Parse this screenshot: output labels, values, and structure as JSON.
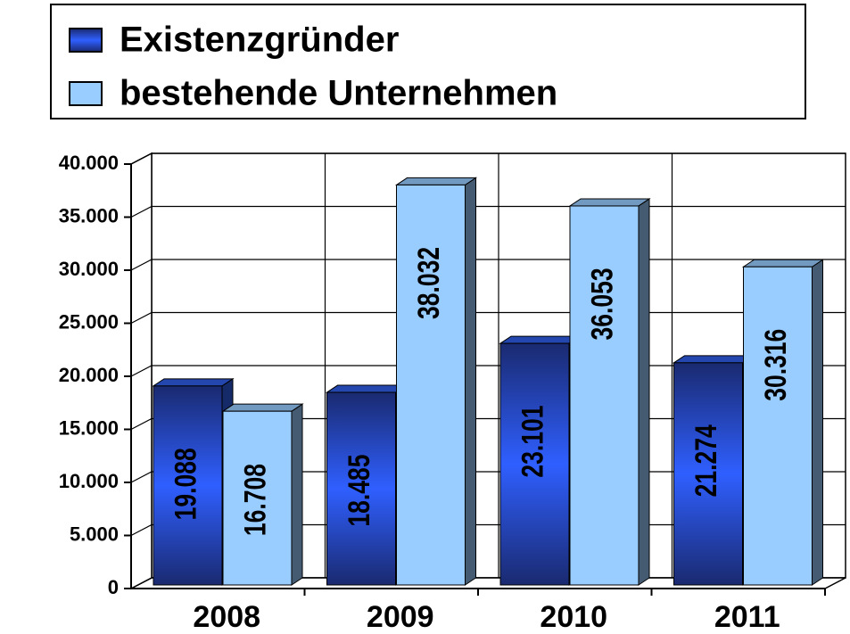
{
  "chart_data": {
    "type": "bar3d",
    "categories": [
      "2008",
      "2009",
      "2010",
      "2011"
    ],
    "series": [
      {
        "name": "Existenzgründer",
        "color": "#2f5fe8",
        "values": [
          19088,
          18485,
          23101,
          21274
        ],
        "value_labels": [
          "19.088",
          "18.485",
          "23.101",
          "21.274"
        ]
      },
      {
        "name": "bestehende Unternehmen",
        "color": "#99ccff",
        "values": [
          16708,
          38032,
          36053,
          30316
        ],
        "value_labels": [
          "16.708",
          "38.032",
          "36.053",
          "30.316"
        ]
      }
    ],
    "ylim": [
      0,
      40000
    ],
    "yticks": [
      0,
      {
        "value": 5000,
        "label": "5.000"
      },
      {
        "value": 10000,
        "label": "10.000"
      },
      {
        "value": 15000,
        "label": "15.000"
      },
      {
        "value": 20000,
        "label": "20.000"
      },
      {
        "value": 25000,
        "label": "25.000"
      },
      {
        "value": 30000,
        "label": "30.000"
      },
      {
        "value": 35000,
        "label": "35.000"
      },
      {
        "value": 40000,
        "label": "40.000"
      }
    ],
    "grid": true,
    "legend": "top"
  }
}
